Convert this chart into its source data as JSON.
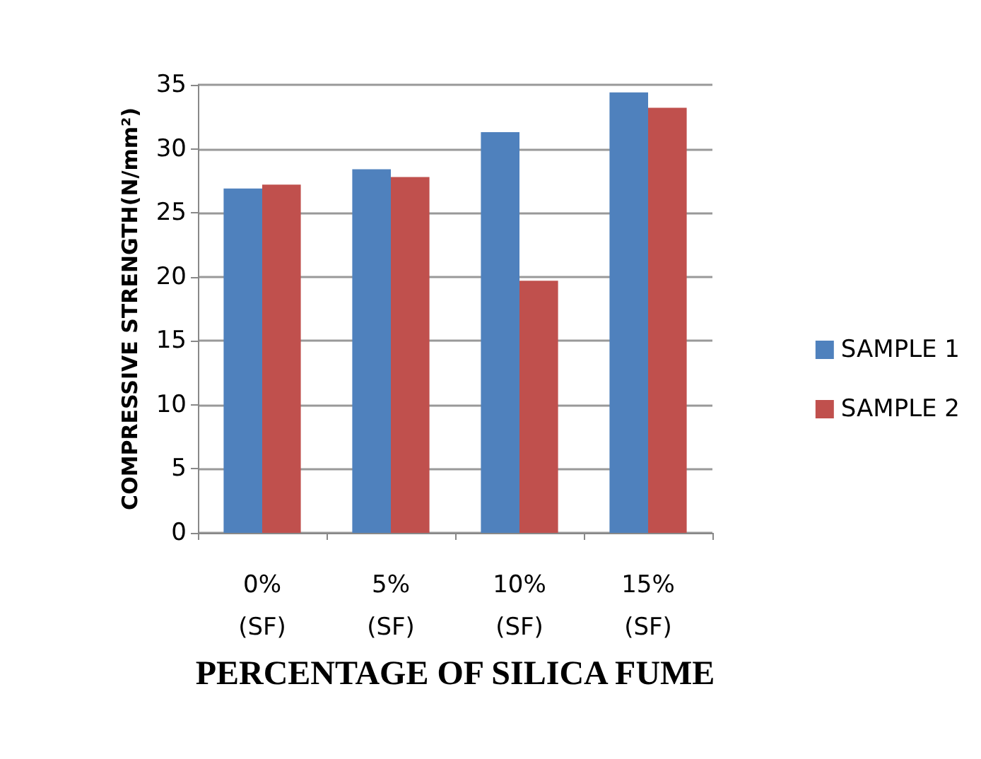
{
  "chart_data": {
    "type": "bar",
    "xlabel": "PERCENTAGE OF SILICA FUME",
    "ylabel": "COMPRESSIVE STRENGTH(N/mm²)",
    "categories": [
      "0%\n(SF)",
      "5%\n(SF)",
      "10%\n(SF)",
      "15%\n(SF)"
    ],
    "series": [
      {
        "name": "SAMPLE 1",
        "color": "#4f81bd",
        "values": [
          26.9,
          28.4,
          31.3,
          34.4
        ]
      },
      {
        "name": "SAMPLE 2",
        "color": "#c0504d",
        "values": [
          27.2,
          27.8,
          19.7,
          33.2
        ]
      }
    ],
    "ylim": [
      0,
      35
    ],
    "yticks": [
      0,
      5,
      10,
      15,
      20,
      25,
      30,
      35
    ],
    "grid": "y",
    "legend": "right"
  }
}
